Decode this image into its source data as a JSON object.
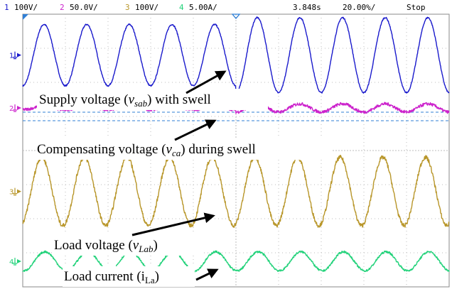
{
  "header": {
    "ch1_num": "1",
    "ch1_scale": "100V/",
    "ch2_num": "2",
    "ch2_scale": "50.0V/",
    "ch3_num": "3",
    "ch3_scale": "100V/",
    "ch4_num": "4",
    "ch4_scale": "5.00A/",
    "time_position": "3.848s",
    "timebase": "20.00%/",
    "run_state": "Stop"
  },
  "colors": {
    "ch1": "#1a1acc",
    "ch2": "#cc22cc",
    "ch3": "#b8962a",
    "ch4": "#22d27a",
    "grid": "#bdbdbd",
    "cursor": "#2f7fd6",
    "text": "#000000"
  },
  "channel_markers": {
    "ch1": "1",
    "ch2": "2",
    "ch3": "3",
    "ch4": "4"
  },
  "annotations": {
    "supply": {
      "pre": "Supply voltage (",
      "v": "v",
      "sub": "sab",
      "post": ") with swell"
    },
    "compensating": {
      "pre": "Compensating voltage (",
      "v": "v",
      "sub": "ca",
      "post": ") during swell"
    },
    "load_voltage": {
      "pre": "Load voltage (",
      "v": "v",
      "sub": "Lab",
      "post": ")"
    },
    "load_current": {
      "pre": "Load current (i",
      "sub": "La",
      "post": ")"
    }
  },
  "chart_data": {
    "type": "line",
    "x_unit": "divisions",
    "x_range": [
      0,
      10
    ],
    "y_range_divisions": [
      -4,
      4
    ],
    "grid": "on, 10 x 8 divisions, dotted",
    "cycles_on_screen": 10,
    "series": [
      {
        "name": "Supply voltage (vsab) with swell",
        "channel": 1,
        "scale": "100V/",
        "offset_div": 2.8,
        "amplitude_pre_div": 0.9,
        "amplitude_post_div": 1.1,
        "swell_start_div": 5.0,
        "noise": 0.02
      },
      {
        "name": "Compensating voltage (vca) during swell",
        "channel": 2,
        "scale": "50.0V/",
        "offset_div": 1.25,
        "amplitude_pre_div": 0.05,
        "amplitude_post_div": 0.12,
        "swell_start_div": 5.0,
        "noise": 0.045
      },
      {
        "name": "Load voltage (vLab)",
        "channel": 3,
        "scale": "100V/",
        "offset_div": -1.2,
        "amplitude_pre_div": 1.0,
        "amplitude_post_div": 1.0,
        "swell_start_div": 5.0,
        "noise": 0.06
      },
      {
        "name": "Load current (iLa)",
        "channel": 4,
        "scale": "5.00A/",
        "offset_div": -3.25,
        "amplitude_pre_div": 0.28,
        "amplitude_post_div": 0.28,
        "swell_start_div": 5.0,
        "noise": 0.03
      }
    ]
  }
}
